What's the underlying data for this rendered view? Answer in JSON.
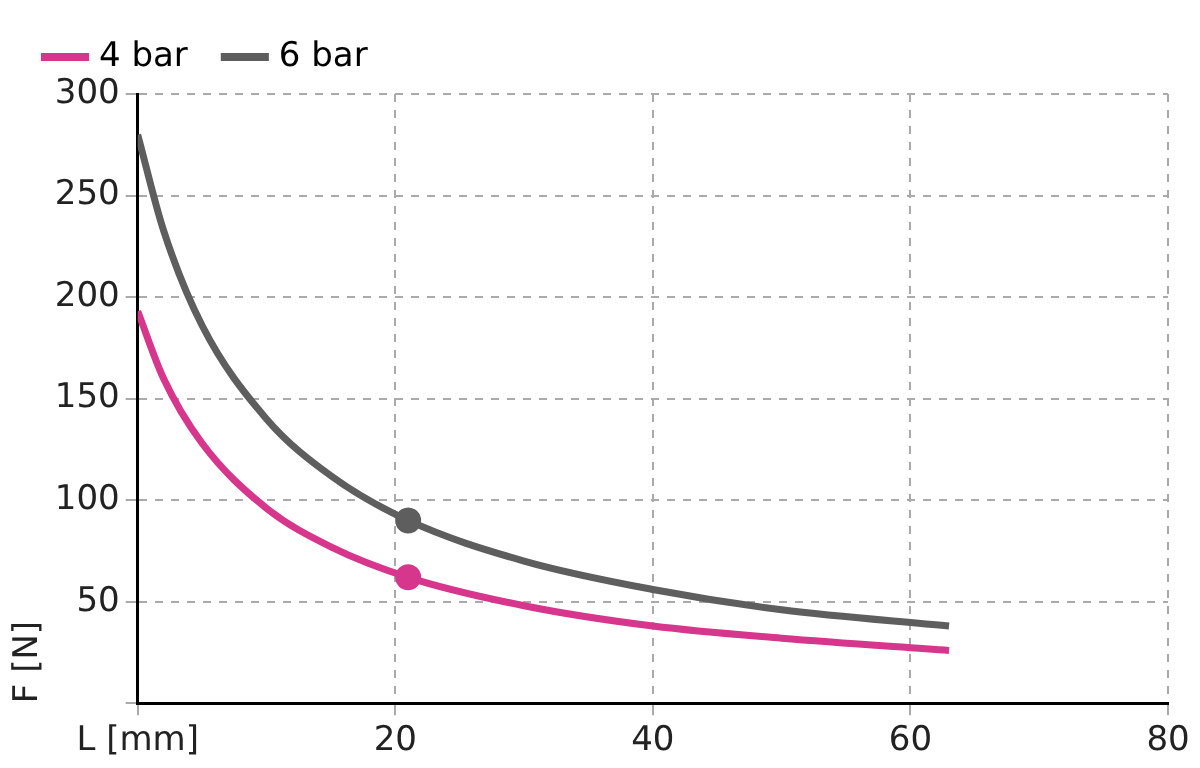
{
  "chart_data": {
    "type": "line",
    "ylabel": "F [N]",
    "x": [
      0,
      2,
      5,
      10,
      15,
      21,
      30,
      40,
      50,
      63
    ],
    "series": [
      {
        "name": "4 bar",
        "color": "#d6378c",
        "marker": "none",
        "values": [
          193,
          160,
          128,
          96,
          77,
          62,
          48,
          38,
          32,
          26
        ]
      },
      {
        "name": "6 bar",
        "color": "#5e5e5e",
        "marker": "none",
        "values": [
          280,
          233,
          186,
          140,
          112,
          90,
          70,
          56,
          46,
          38
        ]
      },
      {
        "type": "scatter",
        "color": "#d6378c",
        "marker": "circle",
        "x": [
          21
        ],
        "values": [
          62
        ]
      },
      {
        "type": "scatter",
        "color": "#5e5e5e",
        "marker": "circle",
        "x": [
          21
        ],
        "values": [
          90
        ]
      }
    ],
    "xlim": [
      0,
      80
    ],
    "xticks": [
      {
        "value": 0,
        "label": "L [mm]"
      },
      20,
      40,
      60,
      80
    ],
    "ylim": [
      0,
      300
    ],
    "yticks": [
      {
        "value": 0,
        "label": null
      },
      50,
      100,
      150,
      200,
      250,
      300
    ],
    "grid": true,
    "legend": "top",
    "line_style": "solid"
  }
}
